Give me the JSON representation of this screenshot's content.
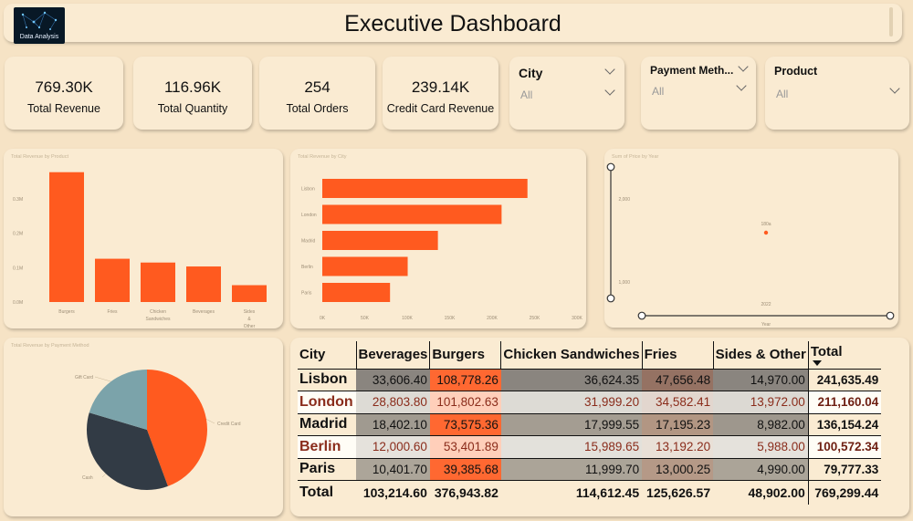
{
  "header": {
    "title": "Executive Dashboard",
    "logo_text": "Data Analysis"
  },
  "kpis": [
    {
      "value": "769.30K",
      "label": "Total Revenue"
    },
    {
      "value": "116.96K",
      "label": "Total Quantity"
    },
    {
      "value": "254",
      "label": "Total Orders"
    },
    {
      "value": "239.14K",
      "label": "Credit Card Revenue"
    }
  ],
  "slicers": [
    {
      "label": "City",
      "value": "All"
    },
    {
      "label": "Payment Meth...",
      "value": "All"
    },
    {
      "label": "Product",
      "value": "All"
    }
  ],
  "chart_data": [
    {
      "type": "bar",
      "title": "Total Revenue by Product",
      "categories": [
        "Burgers",
        "Fries",
        "Chicken Sandwiches",
        "Beverages",
        "Sides & Other"
      ],
      "values": [
        376943.82,
        125626.57,
        114612.45,
        103214.6,
        48902.0
      ],
      "yticks": [
        "0.0M",
        "0.1M",
        "0.2M",
        "0.3M"
      ],
      "ylim": [
        0,
        0.4
      ],
      "color": "#ff5a1f"
    },
    {
      "type": "bar",
      "orientation": "horizontal",
      "title": "Total Revenue by City",
      "categories": [
        "Lisbon",
        "London",
        "Madrid",
        "Berlin",
        "Paris"
      ],
      "values": [
        241635.49,
        211160.04,
        136154.24,
        100572.34,
        79777.33
      ],
      "xticks": [
        "0K",
        "50K",
        "100K",
        "150K",
        "200K",
        "250K",
        "300K"
      ],
      "xlim": [
        0,
        300000
      ],
      "color": "#ff5a1f"
    },
    {
      "type": "scatter",
      "title": "Sum of Price by Year",
      "x": [
        2022
      ],
      "y": [
        180
      ],
      "point_label": "180a",
      "yticks": [
        "2,000",
        "1,000"
      ],
      "xtick": "2022",
      "xlabel": "Year",
      "color": "#ff5a1f"
    },
    {
      "type": "pie",
      "title": "Total Revenue by Payment Method",
      "slices": [
        {
          "label": "Credit Card",
          "value": 239.14,
          "color": "#ff5a1f"
        },
        {
          "label": "Cash",
          "value": 190,
          "color": "#323b45"
        },
        {
          "label": "Gift Card",
          "value": 110,
          "color": "#7ba3aa"
        }
      ]
    }
  ],
  "table": {
    "headers": [
      "City",
      "Beverages",
      "Burgers",
      "Chicken Sandwiches",
      "Fries",
      "Sides & Other",
      "Total"
    ],
    "rows": [
      {
        "city": "Lisbon",
        "values": [
          "33,606.40",
          "108,778.26",
          "36,624.35",
          "47,656.48",
          "14,970.00"
        ],
        "total": "241,635.49",
        "highlight": false
      },
      {
        "city": "London",
        "values": [
          "28,803.80",
          "101,802.63",
          "31,999.20",
          "34,582.41",
          "13,972.00"
        ],
        "total": "211,160.04",
        "highlight": true
      },
      {
        "city": "Madrid",
        "values": [
          "18,402.10",
          "73,575.36",
          "17,999.55",
          "17,195.23",
          "8,982.00"
        ],
        "total": "136,154.24",
        "highlight": false
      },
      {
        "city": "Berlin",
        "values": [
          "12,000.60",
          "53,401.89",
          "15,989.65",
          "13,192.20",
          "5,988.00"
        ],
        "total": "100,572.34",
        "highlight": true
      },
      {
        "city": "Paris",
        "values": [
          "10,401.70",
          "39,385.68",
          "11,999.70",
          "13,000.25",
          "4,990.00"
        ],
        "total": "79,777.33",
        "highlight": false
      }
    ],
    "footer": {
      "label": "Total",
      "values": [
        "103,214.60",
        "376,943.82",
        "114,612.45",
        "125,626.57",
        "48,902.00"
      ],
      "total": "769,299.44"
    },
    "heat": {
      "columns": [
        {
          "low": "#8c8a86",
          "high": "#ff5a1f",
          "max": 376943.82
        },
        {
          "low": "#8c8a86",
          "high": "#8c8a86",
          "max": 1
        },
        {
          "low": "#8c8a86",
          "high": "#b05d3c",
          "max": 1
        },
        {
          "low": "#8c8a86",
          "high": "#8c8a86",
          "max": 1
        }
      ]
    }
  }
}
